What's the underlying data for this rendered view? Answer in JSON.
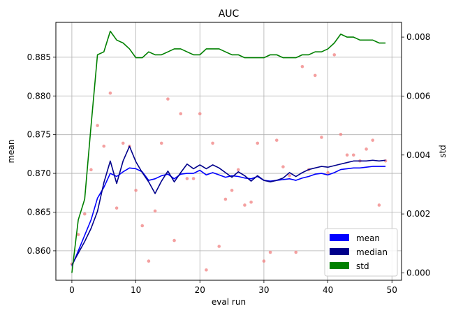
{
  "chart_data": {
    "type": "line",
    "title": "AUC",
    "xlabel": "eval run",
    "ylabel": "mean",
    "y2label": "std",
    "xlim": [
      -2.5,
      51.5
    ],
    "ylim": [
      0.8562,
      0.8895
    ],
    "y2lim": [
      -0.00025,
      0.0085
    ],
    "x_ticks": [
      0,
      10,
      20,
      30,
      40,
      50
    ],
    "x_tick_labels": [
      "0",
      "10",
      "20",
      "30",
      "40",
      "50"
    ],
    "y_ticks": [
      0.86,
      0.865,
      0.87,
      0.875,
      0.88,
      0.885
    ],
    "y_tick_labels": [
      "0.860",
      "0.865",
      "0.870",
      "0.875",
      "0.880",
      "0.885"
    ],
    "y2_ticks": [
      0.0,
      0.002,
      0.004,
      0.006,
      0.008
    ],
    "y2_tick_labels": [
      "0.000",
      "0.002",
      "0.004",
      "0.006",
      "0.008"
    ],
    "grid": true,
    "legend_position": "bottom-right",
    "x": [
      0,
      1,
      2,
      3,
      4,
      5,
      6,
      7,
      8,
      9,
      10,
      11,
      12,
      13,
      14,
      15,
      16,
      17,
      18,
      19,
      20,
      21,
      22,
      23,
      24,
      25,
      26,
      27,
      28,
      29,
      30,
      31,
      32,
      33,
      34,
      35,
      36,
      37,
      38,
      39,
      40,
      41,
      42,
      43,
      44,
      45,
      46,
      47,
      48,
      49
    ],
    "series": [
      {
        "name": "mean",
        "axis": "left",
        "color": "#0000ff",
        "values": [
          0.858,
          0.86,
          0.862,
          0.864,
          0.8668,
          0.8682,
          0.87,
          0.8696,
          0.8702,
          0.8707,
          0.8706,
          0.8702,
          0.8691,
          0.8693,
          0.8697,
          0.8699,
          0.8693,
          0.8699,
          0.87,
          0.87,
          0.8704,
          0.8698,
          0.8701,
          0.8698,
          0.8695,
          0.8697,
          0.8696,
          0.8694,
          0.8693,
          0.8696,
          0.8691,
          0.869,
          0.8691,
          0.8692,
          0.8693,
          0.8691,
          0.8694,
          0.8696,
          0.8699,
          0.87,
          0.8698,
          0.8701,
          0.8705,
          0.8706,
          0.8707,
          0.8707,
          0.8708,
          0.8709,
          0.8709,
          0.8709
        ]
      },
      {
        "name": "median",
        "axis": "left",
        "color": "#00008b",
        "values": [
          0.8582,
          0.8597,
          0.8612,
          0.8629,
          0.8651,
          0.8688,
          0.8716,
          0.8687,
          0.8716,
          0.8735,
          0.8715,
          0.8701,
          0.8689,
          0.8674,
          0.869,
          0.8703,
          0.8689,
          0.8701,
          0.8712,
          0.8706,
          0.8711,
          0.8706,
          0.8711,
          0.8707,
          0.8701,
          0.8695,
          0.8702,
          0.8697,
          0.869,
          0.8697,
          0.8691,
          0.8689,
          0.8691,
          0.8694,
          0.8701,
          0.8696,
          0.8701,
          0.8705,
          0.8707,
          0.8709,
          0.8708,
          0.871,
          0.8712,
          0.8714,
          0.8716,
          0.8716,
          0.8716,
          0.8717,
          0.8716,
          0.8717
        ]
      },
      {
        "name": "std",
        "axis": "right",
        "color": "#008000",
        "values": [
          0.0,
          0.0018,
          0.0025,
          0.005,
          0.0074,
          0.0075,
          0.0082,
          0.0079,
          0.0078,
          0.0076,
          0.0073,
          0.0073,
          0.0075,
          0.0074,
          0.0074,
          0.0075,
          0.0076,
          0.0076,
          0.0075,
          0.0074,
          0.0074,
          0.0076,
          0.0076,
          0.0076,
          0.0075,
          0.0074,
          0.0074,
          0.0073,
          0.0073,
          0.0073,
          0.0073,
          0.0074,
          0.0074,
          0.0073,
          0.0073,
          0.0073,
          0.0074,
          0.0074,
          0.0075,
          0.0075,
          0.0076,
          0.0078,
          0.0081,
          0.008,
          0.008,
          0.0079,
          0.0079,
          0.0079,
          0.0078,
          0.0078
        ]
      }
    ],
    "scatter": {
      "axis": "right",
      "color": "#f08080",
      "points": [
        [
          0,
          0.0003
        ],
        [
          1,
          0.0013
        ],
        [
          2,
          0.002
        ],
        [
          3,
          0.0035
        ],
        [
          4,
          0.005
        ],
        [
          5,
          0.0043
        ],
        [
          6,
          0.0061
        ],
        [
          7,
          0.0022
        ],
        [
          8,
          0.0044
        ],
        [
          9,
          0.0043
        ],
        [
          10,
          0.0028
        ],
        [
          11,
          0.0016
        ],
        [
          12,
          0.0004
        ],
        [
          13,
          0.0021
        ],
        [
          14,
          0.0044
        ],
        [
          15,
          0.0059
        ],
        [
          16,
          0.0011
        ],
        [
          17,
          0.0054
        ],
        [
          18,
          0.0032
        ],
        [
          19,
          0.0032
        ],
        [
          20,
          0.0054
        ],
        [
          21,
          0.0001
        ],
        [
          22,
          0.0044
        ],
        [
          23,
          0.0009
        ],
        [
          24,
          0.0025
        ],
        [
          25,
          0.0028
        ],
        [
          26,
          0.0035
        ],
        [
          27,
          0.0023
        ],
        [
          28,
          0.0024
        ],
        [
          29,
          0.0044
        ],
        [
          30,
          0.0004
        ],
        [
          31,
          0.0007
        ],
        [
          32,
          0.0045
        ],
        [
          33,
          0.0036
        ],
        [
          34,
          0.0033
        ],
        [
          35,
          0.0007
        ],
        [
          36,
          0.007
        ],
        [
          37,
          0.0035
        ],
        [
          38,
          0.0067
        ],
        [
          39,
          0.0046
        ],
        [
          40,
          0.0034
        ],
        [
          41,
          0.0074
        ],
        [
          42,
          0.0047
        ],
        [
          43,
          0.004
        ],
        [
          44,
          0.004
        ],
        [
          45,
          0.0038
        ],
        [
          46,
          0.0042
        ],
        [
          47,
          0.0045
        ],
        [
          48,
          0.0023
        ],
        [
          49,
          0.0038
        ]
      ]
    },
    "legend": [
      {
        "label": "mean",
        "color": "#0000ff"
      },
      {
        "label": "median",
        "color": "#00008b"
      },
      {
        "label": "std",
        "color": "#008000"
      }
    ]
  }
}
